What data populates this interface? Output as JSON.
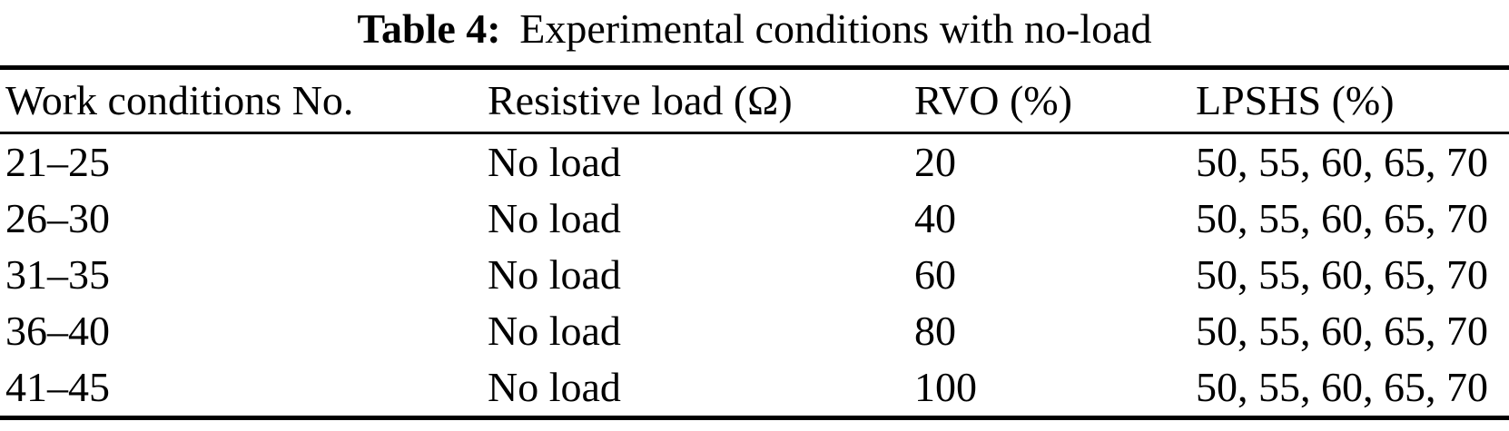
{
  "caption": {
    "label": "Table 4:",
    "text": "Experimental conditions with no-load"
  },
  "table": {
    "columns": [
      "Work conditions No.",
      "Resistive load (Ω)",
      "RVO (%)",
      "LPSHS (%)"
    ],
    "rows": [
      [
        "21–25",
        "No load",
        "20",
        "50, 55, 60, 65, 70"
      ],
      [
        "26–30",
        "No load",
        "40",
        "50, 55, 60, 65, 70"
      ],
      [
        "31–35",
        "No load",
        "60",
        "50, 55, 60, 65, 70"
      ],
      [
        "36–40",
        "No load",
        "80",
        "50, 55, 60, 65, 70"
      ],
      [
        "41–45",
        "No load",
        "100",
        "50, 55, 60, 65, 70"
      ]
    ]
  },
  "colors": {
    "text": "#000000",
    "background": "#ffffff",
    "rule": "#000000"
  }
}
